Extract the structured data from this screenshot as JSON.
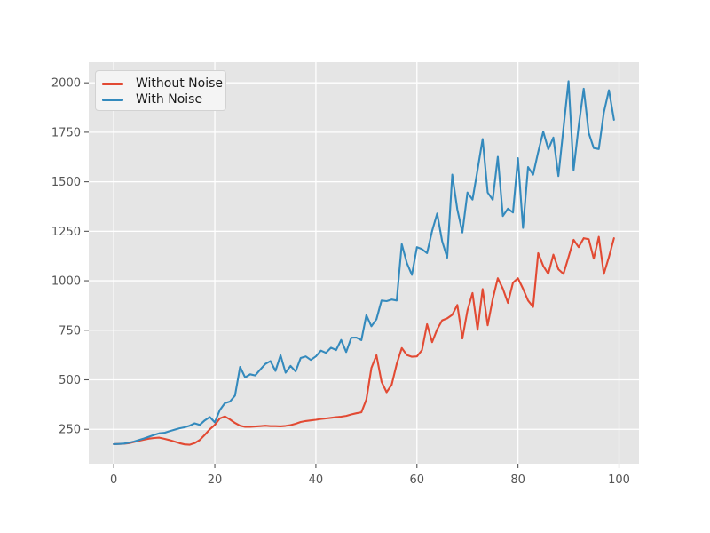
{
  "figure": {
    "background": "#ffffff",
    "plot_background": "#e5e5e5",
    "grid_color": "#ffffff",
    "tick_color": "#555555",
    "tick_label_color": "#555555"
  },
  "legend": {
    "position": "upper-left"
  },
  "chart_data": {
    "type": "line",
    "title": "",
    "xlabel": "",
    "ylabel": "",
    "grid": true,
    "legend_position": "upper left",
    "xlim": [
      -4.95,
      103.95
    ],
    "ylim": [
      76,
      2104
    ],
    "xticks": [
      0,
      20,
      40,
      60,
      80,
      100
    ],
    "yticks": [
      250,
      500,
      750,
      1000,
      1250,
      1500,
      1750,
      2000
    ],
    "x": [
      0,
      1,
      2,
      3,
      4,
      5,
      6,
      7,
      8,
      9,
      10,
      11,
      12,
      13,
      14,
      15,
      16,
      17,
      18,
      19,
      20,
      21,
      22,
      23,
      24,
      25,
      26,
      27,
      28,
      29,
      30,
      31,
      32,
      33,
      34,
      35,
      36,
      37,
      38,
      39,
      40,
      41,
      42,
      43,
      44,
      45,
      46,
      47,
      48,
      49,
      50,
      51,
      52,
      53,
      54,
      55,
      56,
      57,
      58,
      59,
      60,
      61,
      62,
      63,
      64,
      65,
      66,
      67,
      68,
      69,
      70,
      71,
      72,
      73,
      74,
      75,
      76,
      77,
      78,
      79,
      80,
      81,
      82,
      83,
      84,
      85,
      86,
      87,
      88,
      89,
      90,
      91,
      92,
      93,
      94,
      95,
      96,
      97,
      98,
      99
    ],
    "series": [
      {
        "name": "Without Noise",
        "color": "#e24a33",
        "values": [
          175,
          176,
          177,
          180,
          186,
          192,
          198,
          203,
          206,
          208,
          202,
          196,
          188,
          180,
          174,
          172,
          180,
          196,
          222,
          250,
          272,
          305,
          315,
          300,
          282,
          268,
          262,
          262,
          264,
          266,
          268,
          266,
          266,
          265,
          267,
          271,
          278,
          287,
          292,
          295,
          298,
          302,
          305,
          308,
          311,
          314,
          318,
          325,
          331,
          336,
          400,
          560,
          624,
          490,
          437,
          475,
          580,
          660,
          625,
          616,
          618,
          650,
          781,
          690,
          755,
          800,
          810,
          828,
          878,
          708,
          850,
          938,
          752,
          958,
          775,
          908,
          1013,
          960,
          888,
          990,
          1013,
          960,
          900,
          868,
          1140,
          1075,
          1035,
          1132,
          1058,
          1035,
          1120,
          1207,
          1170,
          1215,
          1210,
          1112,
          1222,
          1035,
          1120,
          1215
        ]
      },
      {
        "name": "With Noise",
        "color": "#348abd",
        "values": [
          175,
          176,
          178,
          182,
          188,
          196,
          204,
          213,
          222,
          230,
          232,
          240,
          248,
          255,
          260,
          268,
          280,
          272,
          295,
          312,
          285,
          347,
          382,
          390,
          420,
          565,
          512,
          528,
          522,
          552,
          580,
          594,
          545,
          624,
          536,
          570,
          542,
          610,
          618,
          600,
          618,
          647,
          636,
          662,
          650,
          701,
          640,
          712,
          713,
          700,
          826,
          770,
          806,
          900,
          897,
          905,
          900,
          1185,
          1090,
          1030,
          1170,
          1160,
          1140,
          1252,
          1340,
          1200,
          1117,
          1536,
          1360,
          1244,
          1446,
          1410,
          1560,
          1716,
          1446,
          1409,
          1626,
          1327,
          1364,
          1345,
          1619,
          1267,
          1574,
          1536,
          1650,
          1753,
          1664,
          1723,
          1529,
          1770,
          2008,
          1559,
          1780,
          1970,
          1746,
          1670,
          1665,
          1850,
          1962,
          1813
        ]
      }
    ]
  }
}
